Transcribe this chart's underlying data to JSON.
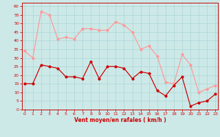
{
  "hours": [
    0,
    1,
    2,
    3,
    4,
    5,
    6,
    7,
    8,
    9,
    10,
    11,
    12,
    13,
    14,
    15,
    16,
    17,
    18,
    19,
    20,
    21,
    22,
    23
  ],
  "wind_avg": [
    15,
    15,
    26,
    25,
    24,
    19,
    19,
    18,
    28,
    18,
    25,
    25,
    24,
    18,
    22,
    21,
    11,
    8,
    14,
    19,
    2,
    4,
    5,
    9
  ],
  "wind_gust": [
    34,
    30,
    57,
    55,
    41,
    42,
    41,
    47,
    47,
    46,
    46,
    51,
    49,
    45,
    35,
    37,
    31,
    16,
    15,
    32,
    26,
    10,
    12,
    14
  ],
  "xlabel": "Vent moyen/en rafales ( km/h )",
  "ylim": [
    0,
    62
  ],
  "yticks": [
    0,
    5,
    10,
    15,
    20,
    25,
    30,
    35,
    40,
    45,
    50,
    55,
    60
  ],
  "bg_color": "#cce9e8",
  "grid_color": "#b0d8d8",
  "avg_color": "#cc0000",
  "gust_color": "#ff9999",
  "axis_label_color": "#cc0000",
  "tick_color": "#cc0000",
  "spine_color": "#cc0000"
}
